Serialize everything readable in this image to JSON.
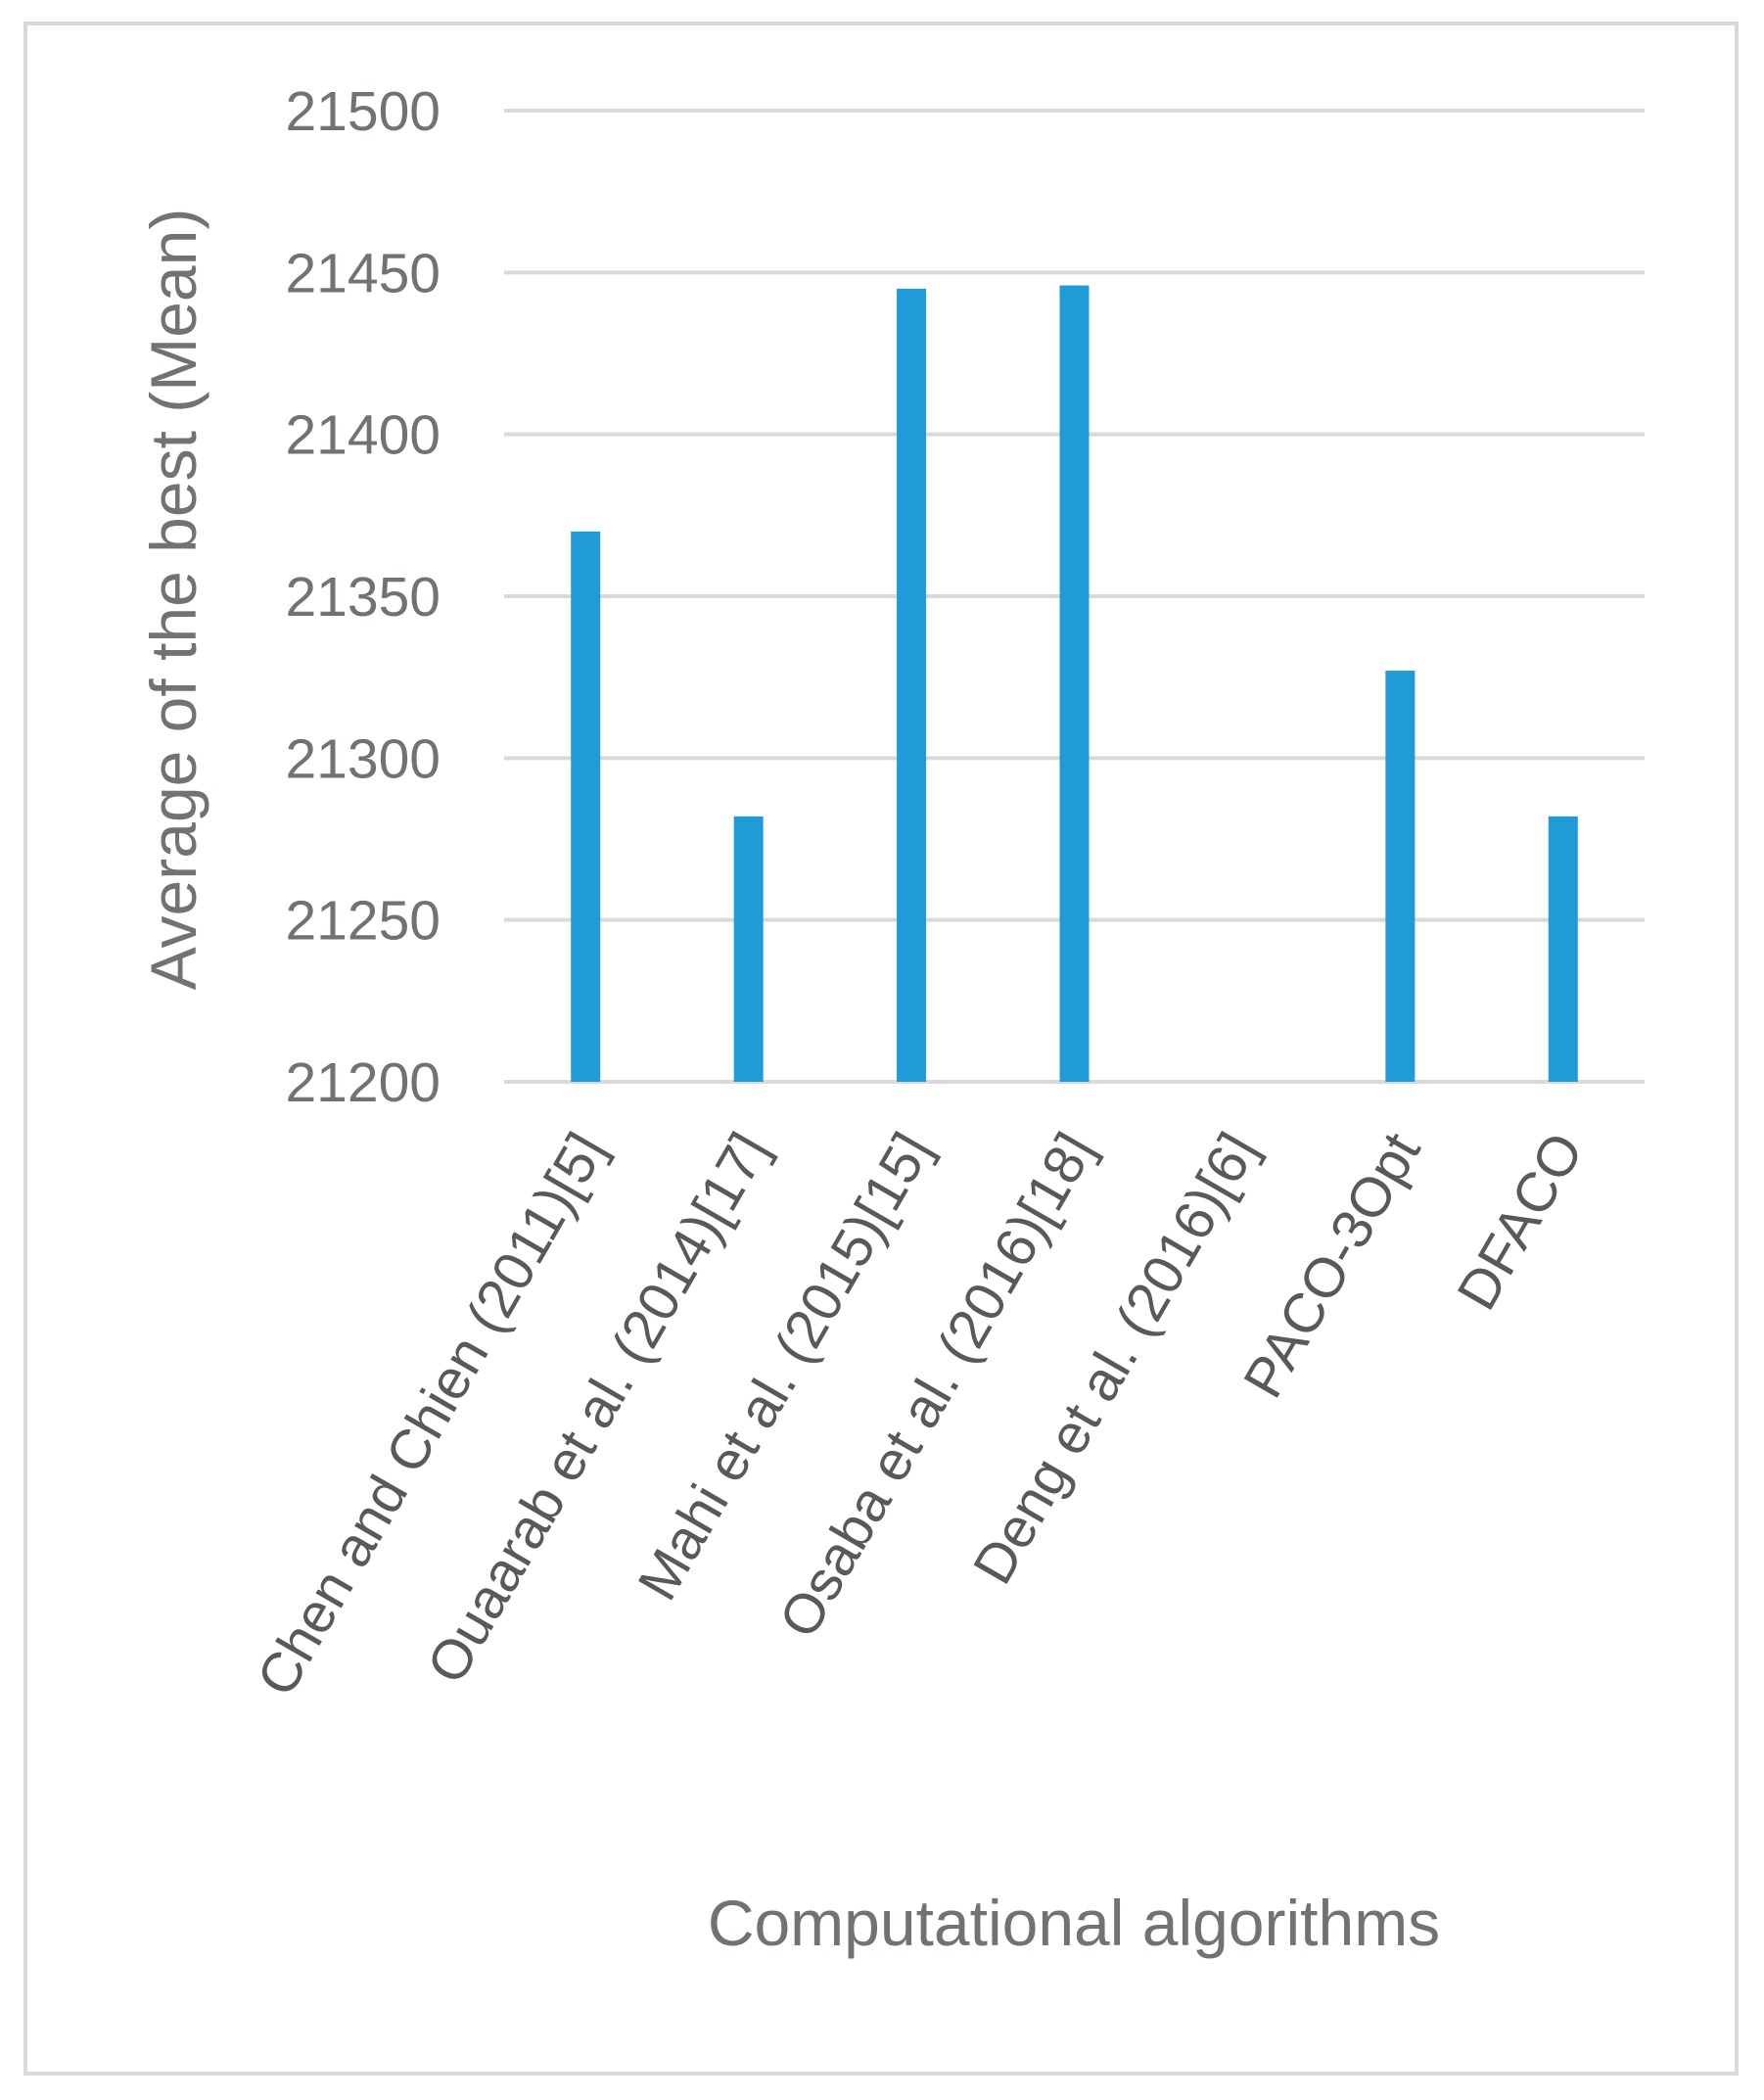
{
  "chart_data": {
    "type": "bar",
    "title": "",
    "xlabel": "Computational algorithms",
    "ylabel": "Average of the best  (Mean)",
    "ylim": [
      21200,
      21500
    ],
    "yticks": [
      21200,
      21250,
      21300,
      21350,
      21400,
      21450,
      21500
    ],
    "grid": true,
    "categories": [
      "Chen and Chien (2011)[5]",
      "Ouaarab et al. (2014)[17]",
      "Mahi et al. (2015)[15]",
      "Osaba et al. (2016)[18]",
      "Deng et al. (2016)[6]",
      "PACO-3Opt",
      "DFACO"
    ],
    "values": [
      21370,
      21282,
      21445,
      21446,
      21200,
      21327,
      21282
    ],
    "colors": {
      "bar": "#1f9bd7",
      "grid": "#d9d9d9",
      "frame": "#d9d9d9"
    }
  }
}
